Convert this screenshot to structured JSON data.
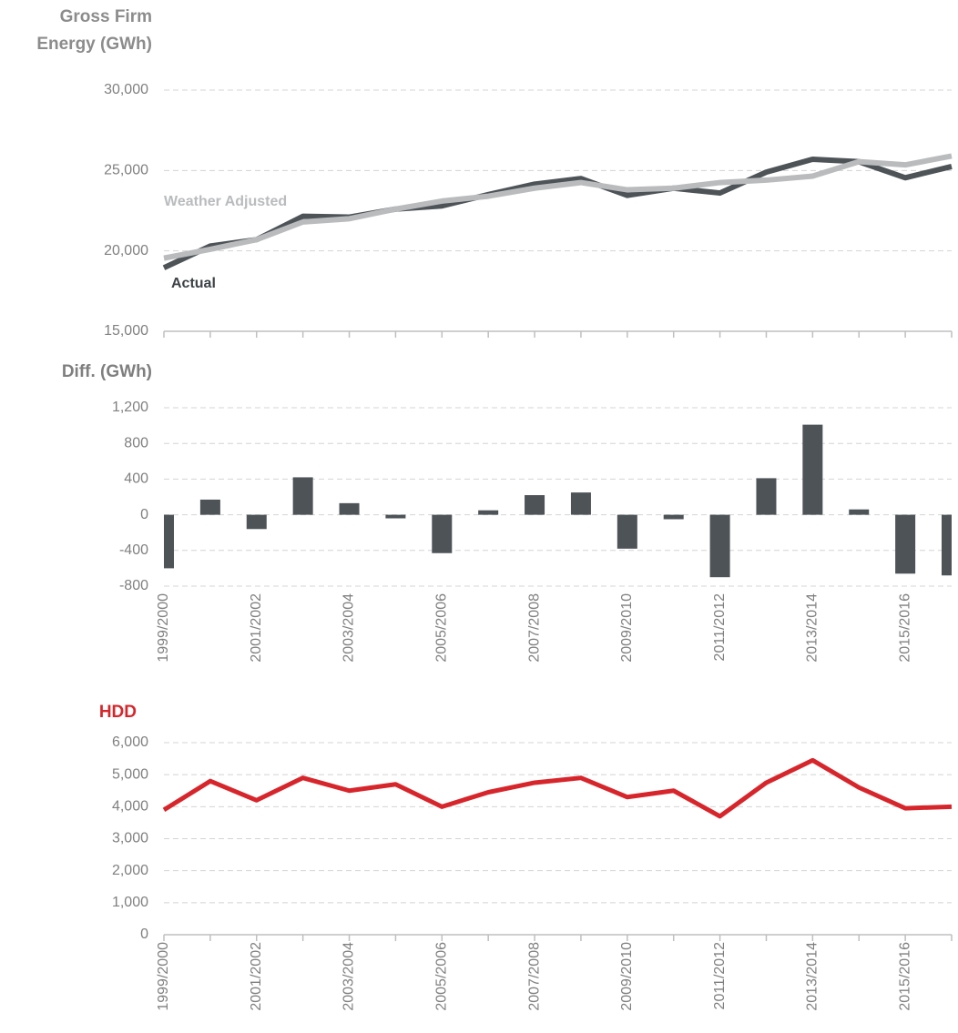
{
  "chart_data": [
    {
      "type": "line",
      "title": "Gross Firm Energy (GWh)",
      "title_color": "#8c8c8c",
      "series": [
        {
          "name": "Actual",
          "color": "#4d5357",
          "values": [
            18950,
            20300,
            20700,
            22150,
            22100,
            22600,
            22800,
            23500,
            24150,
            24500,
            23450,
            23900,
            23600,
            24900,
            25700,
            25550,
            24550,
            25250
          ]
        },
        {
          "name": "Weather Adjusted",
          "color": "#b9bbbd",
          "values": [
            19550,
            20100,
            20700,
            21800,
            22000,
            22600,
            23100,
            23400,
            23900,
            24250,
            23800,
            23900,
            24250,
            24400,
            24650,
            25550,
            25350,
            25900
          ]
        }
      ],
      "ylim": [
        15000,
        30000
      ],
      "yticks": [
        {
          "value": 15000,
          "label": "15,000"
        },
        {
          "value": 20000,
          "label": "20,000"
        },
        {
          "value": 25000,
          "label": "25,000"
        },
        {
          "value": 30000,
          "label": "30,000"
        }
      ],
      "grid": true
    },
    {
      "type": "bar",
      "title": "Diff. (GWh)",
      "title_color": "#7f7f7f",
      "categories": [
        "1999/2000",
        null,
        "2001/2002",
        null,
        "2003/2004",
        null,
        "2005/2006",
        null,
        "2007/2008",
        null,
        "2009/2010",
        null,
        "2011/2012",
        null,
        "2013/2014",
        null,
        "2015/2016",
        null
      ],
      "values": [
        -600,
        170,
        -160,
        420,
        130,
        -40,
        -430,
        50,
        220,
        250,
        -380,
        -50,
        -700,
        410,
        1010,
        60,
        -660,
        -680
      ],
      "color": "#4d5357",
      "ylim": [
        -800,
        1200
      ],
      "yticks": [
        -800,
        -400,
        0,
        400,
        800,
        {
          "value": 1200,
          "label": "1,200"
        }
      ],
      "grid": true
    },
    {
      "type": "line",
      "title": "HDD",
      "title_color": "#d7262b",
      "categories": [
        "1999/2000",
        null,
        "2001/2002",
        null,
        "2003/2004",
        null,
        "2005/2006",
        null,
        "2007/2008",
        null,
        "2009/2010",
        null,
        "2011/2012",
        null,
        "2013/2014",
        null,
        "2015/2016",
        null
      ],
      "values": [
        3900,
        4800,
        4200,
        4900,
        4500,
        4700,
        4000,
        4450,
        4750,
        4900,
        4300,
        4500,
        3700,
        4750,
        5450,
        4600,
        3950,
        4000
      ],
      "color": "#d7262b",
      "ylim": [
        0,
        6000
      ],
      "yticks": [
        0,
        {
          "value": 1000,
          "label": "1,000"
        },
        {
          "value": 2000,
          "label": "2,000"
        },
        {
          "value": 3000,
          "label": "3,000"
        },
        {
          "value": 4000,
          "label": "4,000"
        },
        {
          "value": 5000,
          "label": "5,000"
        },
        {
          "value": 6000,
          "label": "6,000"
        }
      ],
      "grid": true
    }
  ]
}
